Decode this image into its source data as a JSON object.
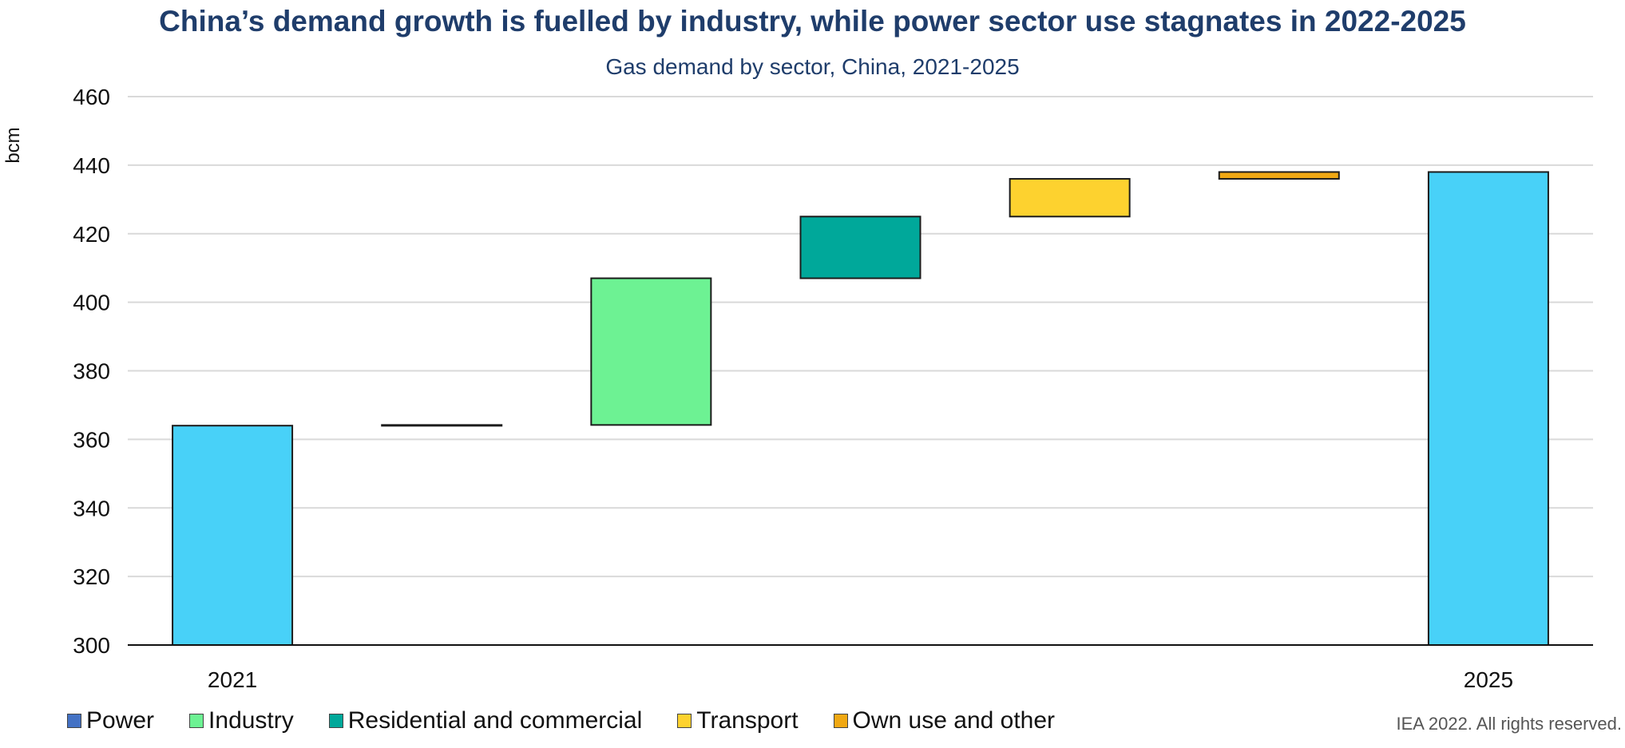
{
  "chart_data": {
    "type": "bar",
    "subtype": "waterfall",
    "title": "China’s demand growth is fuelled by industry, while power sector use stagnates in 2022-2025",
    "subtitle": "Gas demand by sector, China, 2021-2025",
    "ylabel": "bcm",
    "xlabel": "",
    "ylim": [
      300,
      460
    ],
    "yticks": [
      300,
      320,
      340,
      360,
      380,
      400,
      420,
      440,
      460
    ],
    "grid": true,
    "legend_position": "bottom",
    "bars": [
      {
        "label": "2021",
        "kind": "total",
        "start": 300,
        "end": 364,
        "color": "#48d1f8"
      },
      {
        "label": "",
        "series": "Power",
        "kind": "delta",
        "start": 364,
        "end": 364.2,
        "color": "#4472c4"
      },
      {
        "label": "",
        "series": "Industry",
        "kind": "delta",
        "start": 364.2,
        "end": 407,
        "color": "#6df293"
      },
      {
        "label": "",
        "series": "Residential and commercial",
        "kind": "delta",
        "start": 407,
        "end": 425,
        "color": "#00a89a"
      },
      {
        "label": "",
        "series": "Transport",
        "kind": "delta",
        "start": 425,
        "end": 436,
        "color": "#fdd22f"
      },
      {
        "label": "",
        "series": "Own use and other",
        "kind": "delta",
        "start": 436,
        "end": 438,
        "color": "#f0a813"
      },
      {
        "label": "2025",
        "kind": "total",
        "start": 300,
        "end": 438,
        "color": "#48d1f8"
      }
    ],
    "legend": [
      {
        "name": "Power",
        "color": "#4472c4"
      },
      {
        "name": "Industry",
        "color": "#6df293"
      },
      {
        "name": "Residential and commercial",
        "color": "#00a89a"
      },
      {
        "name": "Transport",
        "color": "#fdd22f"
      },
      {
        "name": "Own use and other",
        "color": "#f0a813"
      }
    ]
  },
  "credit": "IEA 2022. All rights reserved."
}
